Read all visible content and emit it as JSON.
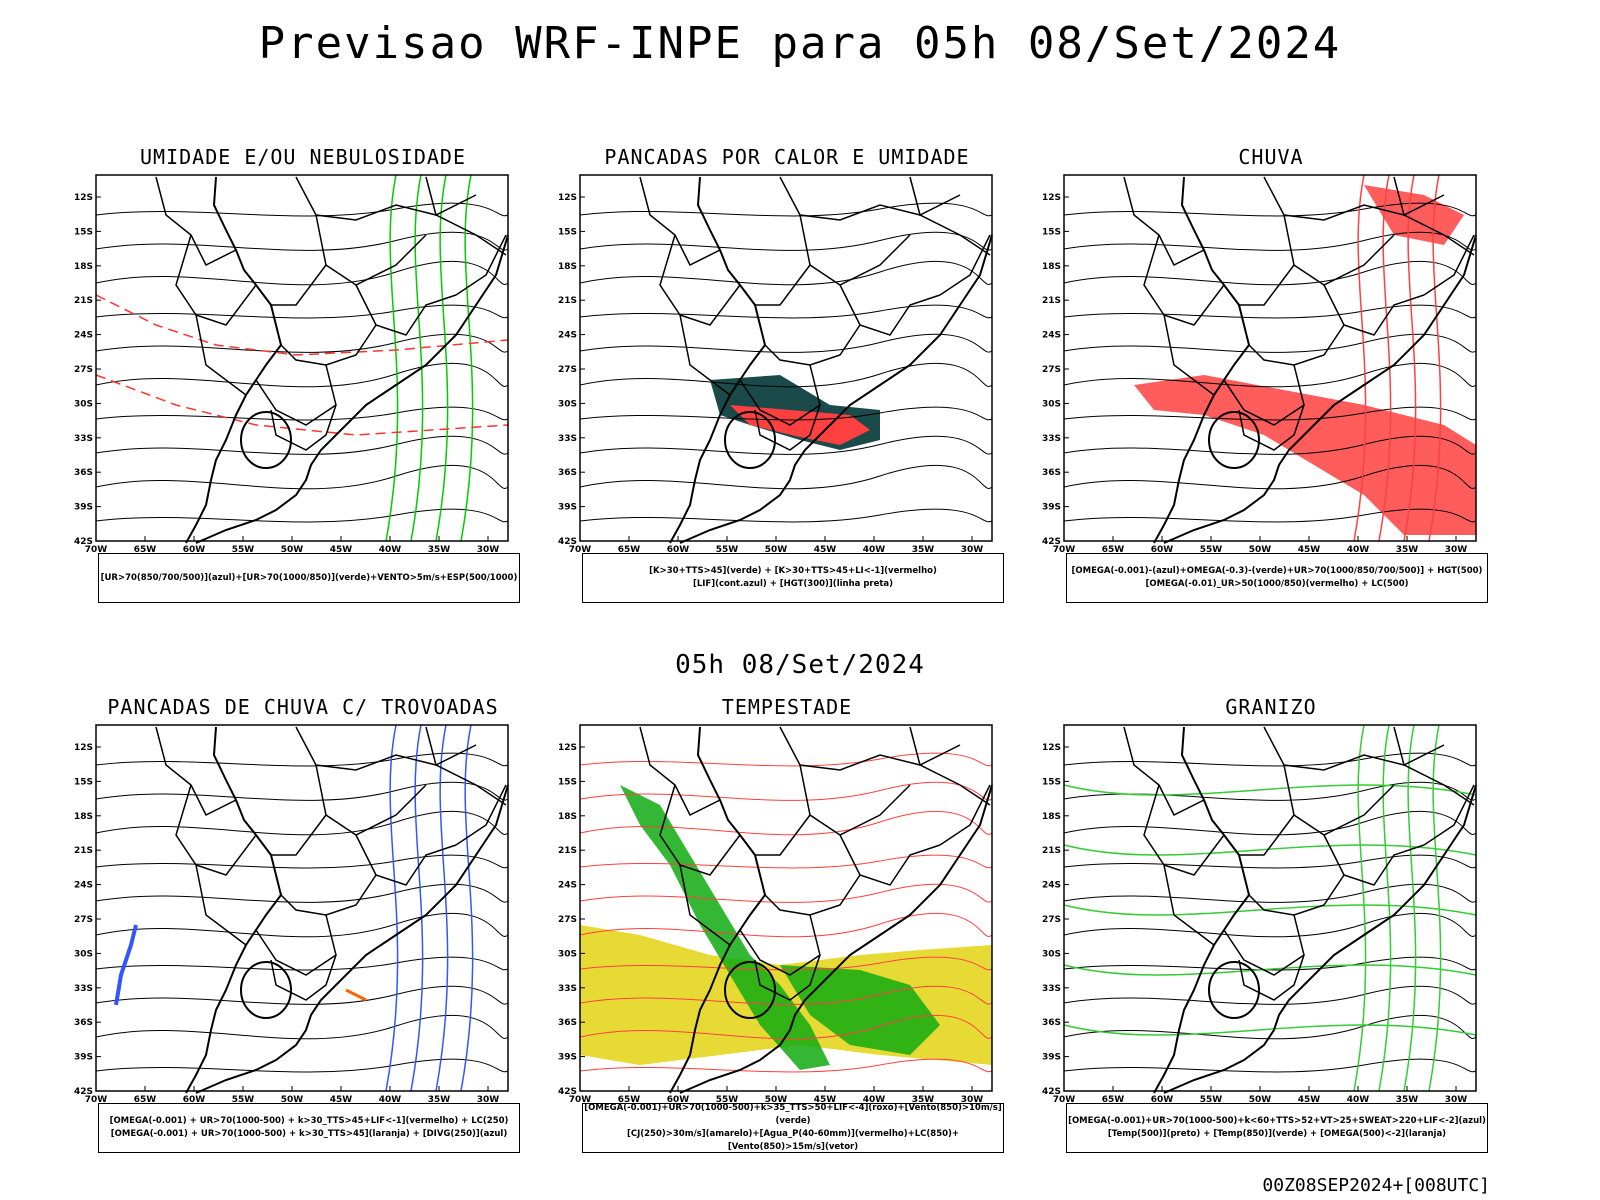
{
  "title": "Previsao WRF-INPE  para 05h 08/Set/2024",
  "mid_date": "05h 08/Set/2024",
  "footer": "00Z08SEP2024+[008UTC]",
  "axes": {
    "y_labels": [
      "12S",
      "15S",
      "18S",
      "21S",
      "24S",
      "27S",
      "30S",
      "33S",
      "36S",
      "39S",
      "42S"
    ],
    "x_labels": [
      "70W",
      "65W",
      "60W",
      "55W",
      "50W",
      "45W",
      "40W",
      "35W",
      "30W"
    ]
  },
  "panels": [
    {
      "title": "UMIDADE E/OU NEBULOSIDADE",
      "legend": [
        "[UR>70(850/700/500)](azul)+[UR>70(1000/850)](verde)+VENTO>5m/s+ESP(500/1000)"
      ]
    },
    {
      "title": "PANCADAS POR CALOR E UMIDADE",
      "legend": [
        "[K>30+TTS>45](verde) + [K>30+TTS>45+LI<-1](vermelho)",
        "[LIF](cont.azul) + [HGT(300)](linha preta)"
      ]
    },
    {
      "title": "CHUVA",
      "legend": [
        "[OMEGA(-0.001)-(azul)+OMEGA(-0.3)-(verde)+UR>70(1000/850/700/500)] + HGT(500)",
        "[OMEGA(-0.01)_UR>50(1000/850)(vermelho) + LC(500)"
      ]
    },
    {
      "title": "PANCADAS DE CHUVA C/ TROVOADAS",
      "legend": [
        "[OMEGA(-0.001) + UR>70(1000-500) + k>30_TTS>45+LIF<-1](vermelho) + LC(250)",
        "[OMEGA(-0.001) + UR>70(1000-500) + k>30_TTS>45](laranja) + [DIVG(250)](azul)"
      ]
    },
    {
      "title": "TEMPESTADE",
      "legend": [
        "[OMEGA(-0.001)+UR>70(1000-500)+k>35_TTS>50+LIF<-4](roxo)+[Vento(850)>10m/s](verde)",
        "[CJ(250)>30m/s](amarelo)+[Agua_P(40-60mm)](vermelho)+LC(850)+[Vento(850)>15m/s](vetor)"
      ]
    },
    {
      "title": "GRANIZO",
      "legend": [
        "[OMEGA(-0.001)+UR>70(1000-500)+k<60+TTS>52+VT>25+SWEAT>220+LIF<-2](azul)",
        "[Temp(500)](preto) + [Temp(850)](verde) + [OMEGA(500)<-2](laranja)"
      ]
    }
  ]
}
